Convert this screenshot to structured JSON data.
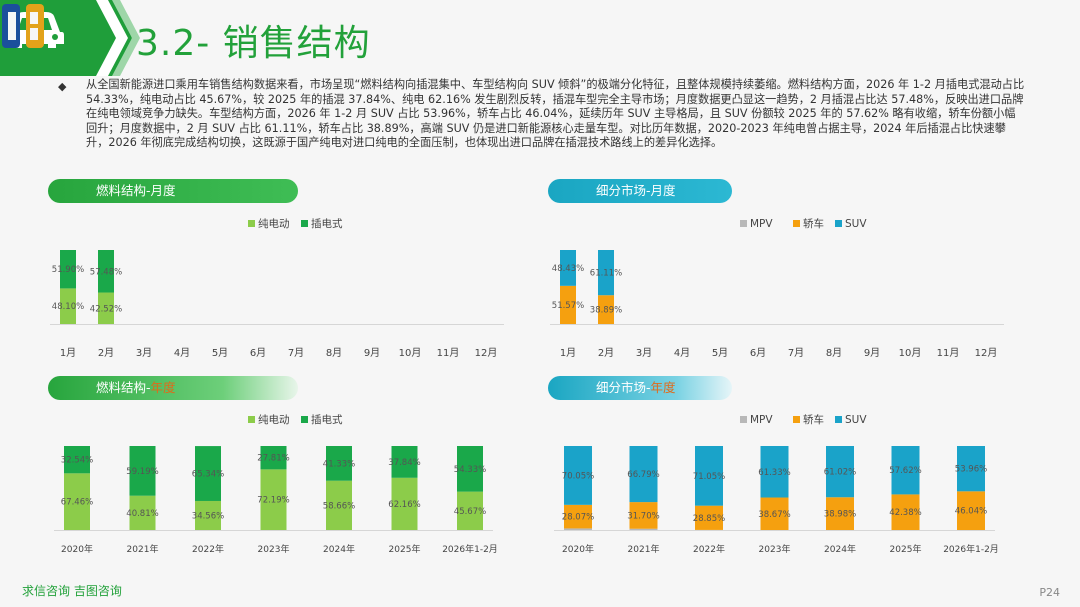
{
  "header": {
    "title": "3.2- 销售结构"
  },
  "summary": "从全国新能源进口乘用车销售结构数据来看，市场呈现“燃料结构向插混集中、车型结构向 SUV 倾斜”的极端分化特征，且整体规模持续萎缩。燃料结构方面，2026 年 1-2 月插电式混动占比 54.33%，纯电动占比 45.67%，较 2025 年的插混 37.84%、纯电 62.16% 发生剧烈反转，插混车型完全主导市场；月度数据更凸显这一趋势，2 月插混占比达 57.48%，反映出进口品牌在纯电领域竞争力缺失。车型结构方面，2026 年 1-2 月 SUV 占比 53.96%，轿车占比 46.04%，延续历年 SUV 主导格局，且 SUV 份额较 2025 年的 57.62% 略有收缩，轿车份额小幅回升；月度数据中，2 月 SUV 占比 61.11%，轿车占比 38.89%，高端 SUV 仍是进口新能源核心走量车型。对比历年数据，2020-2023 年纯电曾占据主导，2024 年后插混占比快速攀升，2026 年彻底完成结构切换，这既源于国产纯电对进口纯电的全面压制，也体现出进口品牌在插混技术路线上的差异化选择。",
  "panels": {
    "fuel_monthly": "燃料结构-月度",
    "segment_monthly": "细分市场-月度",
    "fuel_yearly_prefix": "燃料结构-",
    "fuel_yearly_hl": "年度",
    "segment_yearly_prefix": "细分市场-",
    "segment_yearly_hl": "年度"
  },
  "footer": {
    "brand": "求信咨询 吉图咨询",
    "page": "P24"
  },
  "colors": {
    "green_light": "#8ccc4a",
    "green_dark": "#1aa84a",
    "orange": "#f5a00f",
    "blue": "#1aa3c9",
    "gray": "#b8b8b8"
  },
  "chart_data": [
    {
      "type": "bar",
      "title": "燃料结构-月度",
      "stacked": true,
      "categories": [
        "1月",
        "2月",
        "3月",
        "4月",
        "5月",
        "6月",
        "7月",
        "8月",
        "9月",
        "10月",
        "11月",
        "12月"
      ],
      "series": [
        {
          "name": "纯电动",
          "color": "#8ccc4a",
          "values": [
            48.1,
            42.52,
            null,
            null,
            null,
            null,
            null,
            null,
            null,
            null,
            null,
            null
          ],
          "labels": [
            "48.10%",
            "42.52%"
          ]
        },
        {
          "name": "插电式",
          "color": "#1aa84a",
          "values": [
            51.9,
            57.48,
            null,
            null,
            null,
            null,
            null,
            null,
            null,
            null,
            null,
            null
          ],
          "labels": [
            "51.90%",
            "57.48%"
          ]
        }
      ],
      "ylim": [
        0,
        100
      ]
    },
    {
      "type": "bar",
      "title": "细分市场-月度",
      "stacked": true,
      "categories": [
        "1月",
        "2月",
        "3月",
        "4月",
        "5月",
        "6月",
        "7月",
        "8月",
        "9月",
        "10月",
        "11月",
        "12月"
      ],
      "series": [
        {
          "name": "MPV",
          "color": "#b8b8b8",
          "values": [
            0,
            0,
            null,
            null,
            null,
            null,
            null,
            null,
            null,
            null,
            null,
            null
          ],
          "labels": []
        },
        {
          "name": "轿车",
          "color": "#f5a00f",
          "values": [
            51.57,
            38.89,
            null,
            null,
            null,
            null,
            null,
            null,
            null,
            null,
            null,
            null
          ],
          "labels": [
            "51.57%",
            "38.89%"
          ]
        },
        {
          "name": "SUV",
          "color": "#1aa3c9",
          "values": [
            48.43,
            61.11,
            null,
            null,
            null,
            null,
            null,
            null,
            null,
            null,
            null,
            null
          ],
          "labels": [
            "48.43%",
            "61.11%"
          ]
        }
      ],
      "ylim": [
        0,
        100
      ]
    },
    {
      "type": "bar",
      "title": "燃料结构-年度",
      "stacked": true,
      "categories": [
        "2020年",
        "2021年",
        "2022年",
        "2023年",
        "2024年",
        "2025年",
        "2026年1-2月"
      ],
      "series": [
        {
          "name": "纯电动",
          "color": "#8ccc4a",
          "values": [
            67.46,
            40.81,
            34.56,
            72.19,
            58.66,
            62.16,
            45.67
          ],
          "labels": [
            "67.46%",
            "40.81%",
            "34.56%",
            "72.19%",
            "58.66%",
            "62.16%",
            "45.67%"
          ]
        },
        {
          "name": "插电式",
          "color": "#1aa84a",
          "values": [
            32.54,
            59.19,
            65.34,
            27.81,
            41.33,
            37.84,
            54.33
          ],
          "labels": [
            "32.54%",
            "59.19%",
            "65.34%",
            "27.81%",
            "41.33%",
            "37.84%",
            "54.33%"
          ]
        }
      ],
      "ylim": [
        0,
        100
      ]
    },
    {
      "type": "bar",
      "title": "细分市场-年度",
      "stacked": true,
      "categories": [
        "2020年",
        "2021年",
        "2022年",
        "2023年",
        "2024年",
        "2025年",
        "2026年1-2月"
      ],
      "series": [
        {
          "name": "MPV",
          "color": "#b8b8b8",
          "values": [
            1.88,
            1.51,
            0.1,
            0,
            0,
            0,
            0
          ],
          "labels": []
        },
        {
          "name": "轿车",
          "color": "#f5a00f",
          "values": [
            28.07,
            31.7,
            28.85,
            38.67,
            38.98,
            42.38,
            46.04
          ],
          "labels": [
            "28.07%",
            "31.70%",
            "28.85%",
            "38.67%",
            "38.98%",
            "42.38%",
            "46.04%"
          ]
        },
        {
          "name": "SUV",
          "color": "#1aa3c9",
          "values": [
            70.05,
            66.79,
            71.05,
            61.33,
            61.02,
            57.62,
            53.96
          ],
          "labels": [
            "70.05%",
            "66.79%",
            "71.05%",
            "61.33%",
            "61.02%",
            "57.62%",
            "53.96%"
          ]
        }
      ],
      "ylim": [
        0,
        100
      ]
    }
  ]
}
